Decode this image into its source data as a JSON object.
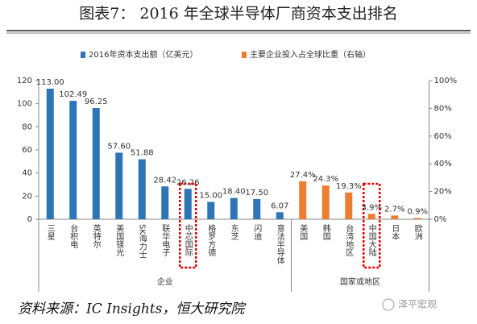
{
  "chart_data": {
    "type": "bar",
    "title": "图表7： 2016 年全球半导体厂商资本支出排名",
    "categories": [
      "三星",
      "台积电",
      "英特尔",
      "美国镁光",
      "SK海力士",
      "联华电子",
      "中芯国际",
      "格罗方德",
      "东芝",
      "闪迪",
      "意法半导体",
      "美国",
      "韩国",
      "台湾地区",
      "中国大陆",
      "日本",
      "欧洲"
    ],
    "groups": [
      {
        "label": "企业",
        "size": 11
      },
      {
        "label": "国家或地区",
        "size": 6
      }
    ],
    "series": [
      {
        "name": "2016年资本支出额（亿美元）",
        "color": "#2e75b6",
        "values": [
          113.0,
          102.49,
          96.25,
          57.6,
          51.88,
          28.42,
          26.26,
          15.0,
          18.4,
          17.5,
          6.07,
          null,
          null,
          null,
          null,
          null,
          null
        ],
        "value_labels": [
          "113.00",
          "102.49",
          "96.25",
          "57.60",
          "51.88",
          "28.42",
          "26.26",
          "15.00",
          "18.40",
          "17.50",
          "6.07",
          null,
          null,
          null,
          null,
          null,
          null
        ]
      },
      {
        "name": "主要企业投入占全球比重（右轴）",
        "color": "#ed7d31",
        "axis": "y2",
        "values": [
          null,
          null,
          null,
          null,
          null,
          null,
          null,
          null,
          null,
          null,
          null,
          27.4,
          24.3,
          19.3,
          3.9,
          2.7,
          0.9
        ],
        "value_labels": [
          null,
          null,
          null,
          null,
          null,
          null,
          null,
          null,
          null,
          null,
          null,
          "27.4%",
          "24.3%",
          "19.3%",
          "3.9%",
          "2.7%",
          "0.9%"
        ]
      }
    ],
    "ylim": [
      0,
      120
    ],
    "yticks": [
      0,
      20,
      40,
      60,
      80,
      100,
      120
    ],
    "y2lim": [
      0,
      100
    ],
    "y2ticks": [
      {
        "value": 0,
        "label": "0%"
      },
      {
        "value": 20,
        "label": "20%"
      },
      {
        "value": 40,
        "label": "40%"
      },
      {
        "value": 60,
        "label": "60%"
      },
      {
        "value": 80,
        "label": "80%"
      },
      {
        "value": 100,
        "label": "100%"
      }
    ],
    "source": "资料来源：IC Insights，恒大研究院",
    "watermark": "泽平宏观"
  }
}
